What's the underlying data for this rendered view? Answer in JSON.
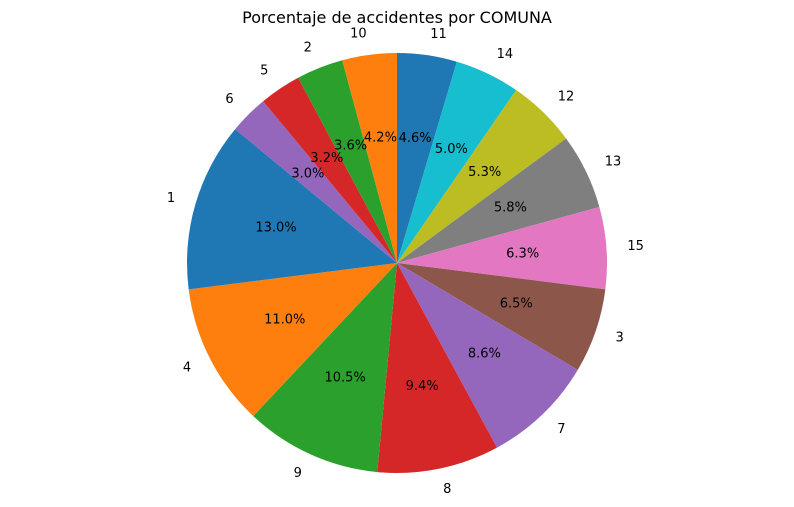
{
  "chart_data": {
    "type": "pie",
    "title": "Porcentaje de accidentes por COMUNA",
    "slices": [
      {
        "label": "11",
        "value": 4.6,
        "pct_label": "4.6%",
        "color": "#1f77b4"
      },
      {
        "label": "14",
        "value": 5.0,
        "pct_label": "5.0%",
        "color": "#17becf"
      },
      {
        "label": "12",
        "value": 5.3,
        "pct_label": "5.3%",
        "color": "#bcbd22"
      },
      {
        "label": "13",
        "value": 5.8,
        "pct_label": "5.8%",
        "color": "#7f7f7f"
      },
      {
        "label": "15",
        "value": 6.3,
        "pct_label": "6.3%",
        "color": "#e377c2"
      },
      {
        "label": "3",
        "value": 6.5,
        "pct_label": "6.5%",
        "color": "#8c564b"
      },
      {
        "label": "7",
        "value": 8.6,
        "pct_label": "8.6%",
        "color": "#9467bd"
      },
      {
        "label": "8",
        "value": 9.4,
        "pct_label": "9.4%",
        "color": "#d62728"
      },
      {
        "label": "9",
        "value": 10.5,
        "pct_label": "10.5%",
        "color": "#2ca02c"
      },
      {
        "label": "4",
        "value": 11.0,
        "pct_label": "11.0%",
        "color": "#ff7f0e"
      },
      {
        "label": "1",
        "value": 13.0,
        "pct_label": "13.0%",
        "color": "#1f77b4"
      },
      {
        "label": "6",
        "value": 3.0,
        "pct_label": "3.0%",
        "color": "#9467bd"
      },
      {
        "label": "5",
        "value": 3.2,
        "pct_label": "3.2%",
        "color": "#d62728"
      },
      {
        "label": "2",
        "value": 3.6,
        "pct_label": "3.6%",
        "color": "#2ca02c"
      },
      {
        "label": "10",
        "value": 4.2,
        "pct_label": "4.2%",
        "color": "#ff7f0e"
      }
    ]
  }
}
